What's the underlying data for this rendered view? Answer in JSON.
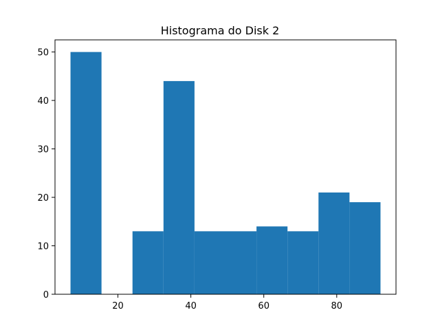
{
  "chart_data": {
    "type": "bar",
    "title": "Histograma do Disk 2",
    "xlabel": "",
    "ylabel": "",
    "bins": [
      {
        "start": 7.0,
        "end": 15.5,
        "count": 50
      },
      {
        "start": 15.5,
        "end": 24.0,
        "count": 0
      },
      {
        "start": 24.0,
        "end": 32.5,
        "count": 13
      },
      {
        "start": 32.5,
        "end": 41.0,
        "count": 44
      },
      {
        "start": 41.0,
        "end": 49.5,
        "count": 13
      },
      {
        "start": 49.5,
        "end": 58.0,
        "count": 13
      },
      {
        "start": 58.0,
        "end": 66.5,
        "count": 14
      },
      {
        "start": 66.5,
        "end": 75.0,
        "count": 13
      },
      {
        "start": 75.0,
        "end": 83.5,
        "count": 21
      },
      {
        "start": 83.5,
        "end": 92.0,
        "count": 19
      }
    ],
    "xlim": [
      2.75,
      96.25
    ],
    "ylim": [
      0,
      52.5
    ],
    "xticks": [
      20,
      40,
      60,
      80
    ],
    "yticks": [
      0,
      10,
      20,
      30,
      40,
      50
    ],
    "grid": false,
    "bar_color": "#1f77b4"
  }
}
